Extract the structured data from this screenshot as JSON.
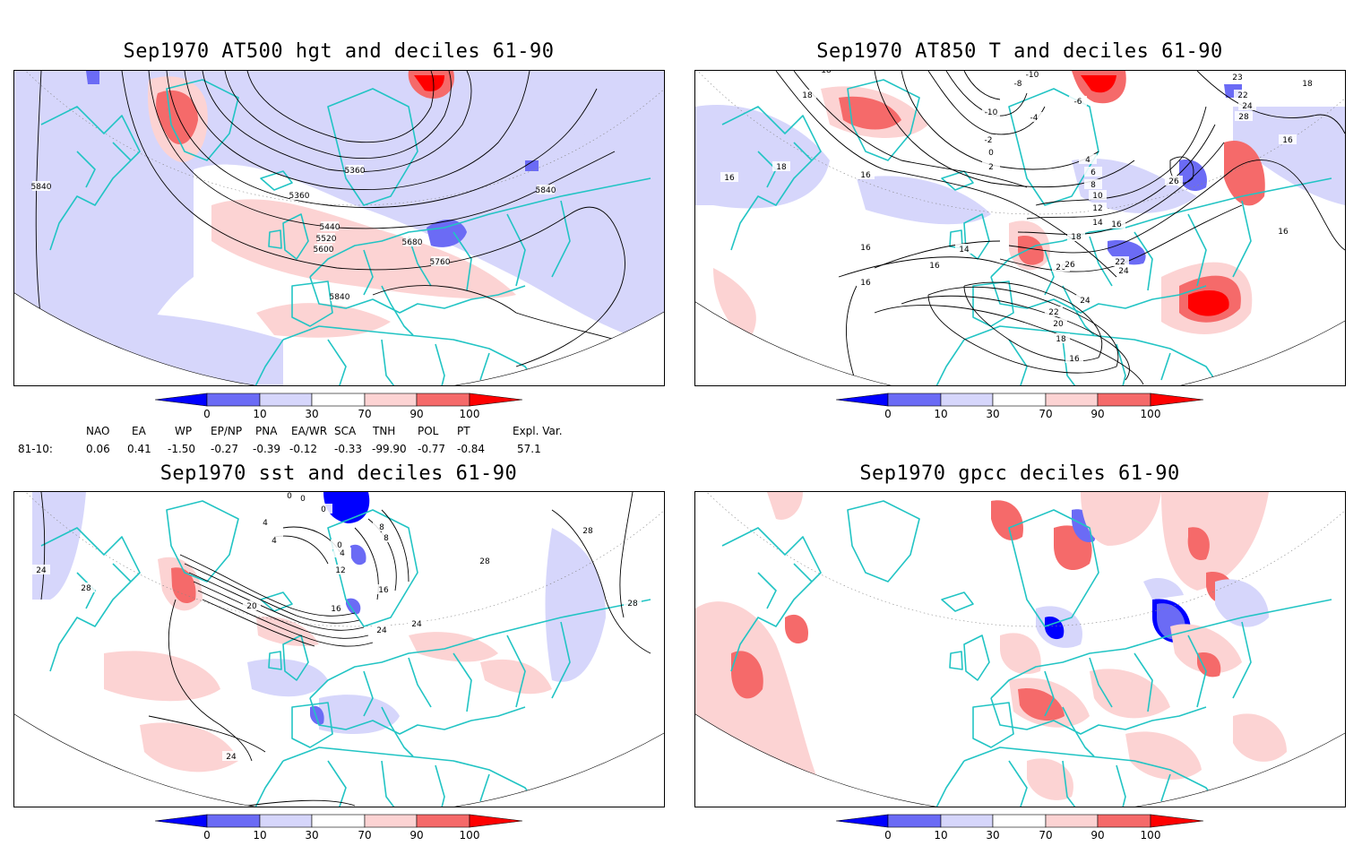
{
  "panels": {
    "tl": {
      "title": "Sep1970 AT500 hgt and deciles 61-90",
      "contour_labels": [
        "5840",
        "5360",
        "5360",
        "5440",
        "5520",
        "5600",
        "5680",
        "5760",
        "5840",
        "5840"
      ]
    },
    "tr": {
      "title": "Sep1970 AT850 T and deciles 61-90",
      "contour_labels": [
        "18",
        "18",
        "16",
        "18",
        "16",
        "-10",
        "-8",
        "-10",
        "-6",
        "-4",
        "-2",
        "0",
        "2",
        "4",
        "6",
        "8",
        "10",
        "12",
        "14",
        "16",
        "18",
        "20",
        "22",
        "24",
        "26",
        "26",
        "16",
        "14",
        "16",
        "16",
        "24",
        "22",
        "20",
        "18",
        "16",
        "23",
        "22",
        "24",
        "28",
        "18",
        "16",
        "16"
      ]
    },
    "bl": {
      "title": "Sep1970 sst and deciles 61-90",
      "contour_labels": [
        "24",
        "28",
        "0",
        "0",
        "0",
        "4",
        "4",
        "0",
        "8",
        "4",
        "8",
        "12",
        "16",
        "24",
        "20",
        "16",
        "24",
        "28",
        "28",
        "24",
        "28"
      ]
    },
    "br": {
      "title": "Sep1970 gpcc deciles 61-90"
    }
  },
  "colorbar": {
    "ticks": [
      "0",
      "10",
      "30",
      "70",
      "90",
      "100"
    ],
    "colors": [
      "#0000ff",
      "#6b6bf5",
      "#d6d6fb",
      "#ffffff",
      "#fcd3d3",
      "#f56a6a",
      "#ff0000"
    ]
  },
  "indices": {
    "headers": [
      "NAO",
      "EA",
      "WP",
      "EP/NP",
      "PNA",
      "EA/WR",
      "SCA",
      "TNH",
      "POL",
      "PT",
      "Expl. Var."
    ],
    "row_label": "81-10:",
    "values": [
      "0.06",
      "0.41",
      "-1.50",
      "-0.27",
      "-0.39",
      "-0.12",
      "-0.33",
      "-99.90",
      "-0.77",
      "-0.84",
      "57.1"
    ]
  },
  "colors": {
    "coast": "#22c4c4",
    "grid": "#888888",
    "contour": "#000000"
  }
}
